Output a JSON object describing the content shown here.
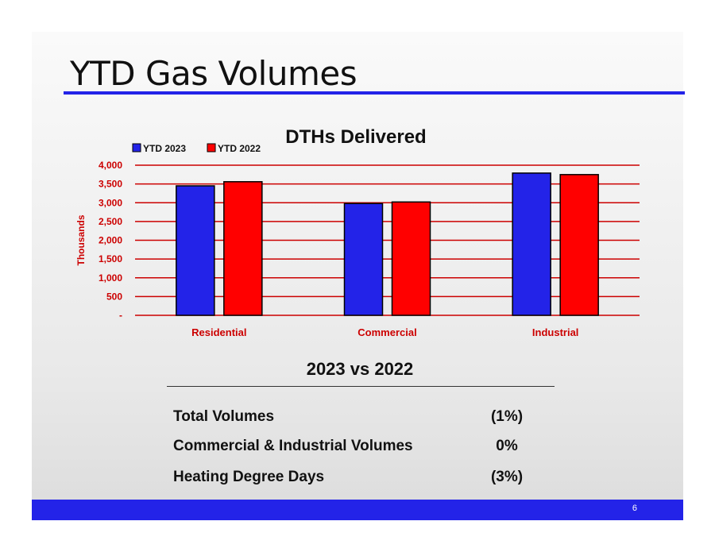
{
  "slide": {
    "title": "YTD Gas Volumes",
    "page_number": "6",
    "accent_color": "#2323e8"
  },
  "chart_data": {
    "type": "bar",
    "title": "DTHs Delivered",
    "ylabel": "Thousands",
    "xlabel": "",
    "categories": [
      "Residential",
      "Commercial",
      "Industrial"
    ],
    "series": [
      {
        "name": "YTD 2023",
        "color": "#2323e8",
        "values": [
          3450,
          2980,
          3790
        ]
      },
      {
        "name": "YTD 2022",
        "color": "#ff0000",
        "values": [
          3560,
          3020,
          3750
        ]
      }
    ],
    "ylim": [
      0,
      4000
    ],
    "yticks": [
      0,
      500,
      1000,
      1500,
      2000,
      2500,
      3000,
      3500,
      4000
    ],
    "ytick_labels": [
      "-",
      "500",
      "1,000",
      "1,500",
      "2,000",
      "2,500",
      "3,000",
      "3,500",
      "4,000"
    ],
    "grid": true,
    "legend_position": "top-left",
    "axis_color": "#cc0000"
  },
  "summary": {
    "heading": "2023 vs 2022",
    "rows": [
      {
        "label": "Total Volumes",
        "value": "(1%)"
      },
      {
        "label": "Commercial & Industrial Volumes",
        "value": "0%"
      },
      {
        "label": "Heating Degree Days",
        "value": "(3%)"
      }
    ]
  }
}
